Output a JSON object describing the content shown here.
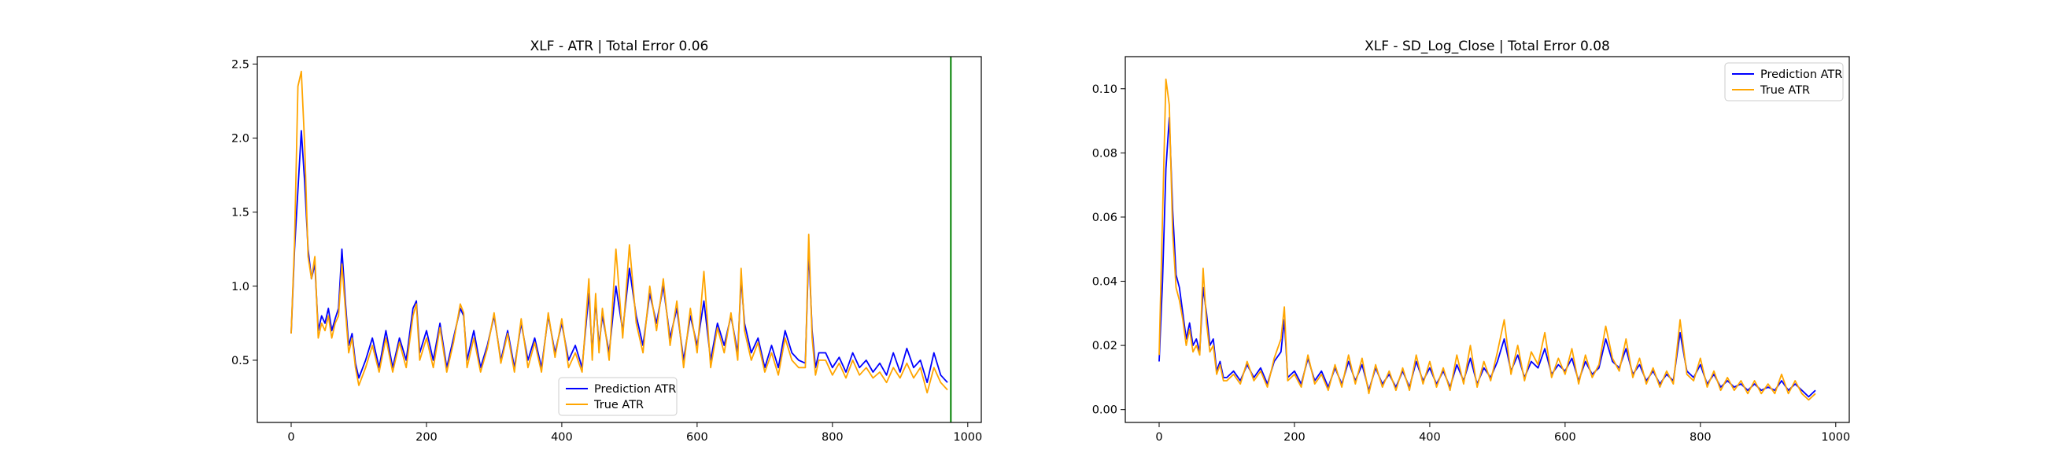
{
  "chart_data": [
    {
      "type": "line",
      "title": "XLF - ATR | Total Error 0.06",
      "xlabel": "",
      "ylabel": "",
      "xlim": [
        -50,
        1020
      ],
      "ylim": [
        0.08,
        2.55
      ],
      "xticks": [
        0,
        200,
        400,
        600,
        800,
        1000
      ],
      "yticks": [
        0.5,
        1.0,
        1.5,
        2.0,
        2.5
      ],
      "x_tick_labels": [
        "0",
        "200",
        "400",
        "600",
        "800",
        "1000"
      ],
      "y_tick_labels": [
        "0.5",
        "1.0",
        "1.5",
        "2.0",
        "2.5"
      ],
      "vline": {
        "x": 975,
        "color": "#008000"
      },
      "grid": false,
      "legend": {
        "position": "lower-center",
        "entries": [
          "Prediction ATR",
          "True ATR"
        ]
      },
      "series": [
        {
          "name": "Prediction ATR",
          "color": "#0000ff",
          "x": [
            0,
            5,
            10,
            15,
            20,
            25,
            30,
            35,
            40,
            45,
            50,
            55,
            60,
            65,
            70,
            75,
            80,
            85,
            90,
            95,
            100,
            110,
            120,
            130,
            140,
            150,
            160,
            170,
            180,
            185,
            190,
            200,
            210,
            220,
            230,
            240,
            250,
            255,
            260,
            270,
            280,
            290,
            300,
            310,
            320,
            330,
            340,
            350,
            360,
            370,
            380,
            390,
            400,
            410,
            420,
            430,
            440,
            445,
            450,
            455,
            460,
            470,
            480,
            490,
            500,
            510,
            520,
            530,
            540,
            550,
            560,
            570,
            580,
            590,
            600,
            610,
            620,
            630,
            640,
            650,
            660,
            665,
            670,
            680,
            690,
            700,
            710,
            720,
            730,
            740,
            750,
            760,
            765,
            770,
            775,
            780,
            790,
            800,
            810,
            820,
            830,
            840,
            850,
            860,
            870,
            880,
            890,
            900,
            910,
            920,
            930,
            940,
            950,
            960,
            970
          ],
          "y": [
            0.68,
            1.25,
            1.65,
            2.05,
            1.7,
            1.25,
            1.05,
            1.15,
            0.7,
            0.8,
            0.75,
            0.85,
            0.7,
            0.78,
            0.85,
            1.25,
            0.9,
            0.6,
            0.68,
            0.48,
            0.38,
            0.5,
            0.65,
            0.45,
            0.7,
            0.45,
            0.65,
            0.5,
            0.85,
            0.9,
            0.55,
            0.7,
            0.5,
            0.75,
            0.45,
            0.65,
            0.85,
            0.8,
            0.5,
            0.7,
            0.45,
            0.6,
            0.8,
            0.5,
            0.7,
            0.45,
            0.75,
            0.5,
            0.65,
            0.45,
            0.8,
            0.55,
            0.75,
            0.5,
            0.6,
            0.45,
            0.95,
            0.55,
            0.9,
            0.6,
            0.8,
            0.55,
            1.0,
            0.7,
            1.12,
            0.8,
            0.6,
            0.95,
            0.75,
            1.0,
            0.65,
            0.85,
            0.5,
            0.8,
            0.6,
            0.9,
            0.5,
            0.75,
            0.6,
            0.8,
            0.55,
            1.05,
            0.75,
            0.55,
            0.65,
            0.45,
            0.6,
            0.45,
            0.7,
            0.55,
            0.5,
            0.48,
            1.25,
            0.7,
            0.45,
            0.55,
            0.55,
            0.45,
            0.52,
            0.42,
            0.55,
            0.45,
            0.5,
            0.42,
            0.48,
            0.4,
            0.55,
            0.42,
            0.58,
            0.45,
            0.5,
            0.35,
            0.55,
            0.4,
            0.35
          ]
        },
        {
          "name": "True ATR",
          "color": "#ffa500",
          "x": [
            0,
            5,
            10,
            15,
            20,
            25,
            30,
            35,
            40,
            45,
            50,
            55,
            60,
            65,
            70,
            75,
            80,
            85,
            90,
            95,
            100,
            110,
            120,
            130,
            140,
            150,
            160,
            170,
            180,
            185,
            190,
            200,
            210,
            220,
            230,
            240,
            250,
            255,
            260,
            270,
            280,
            290,
            300,
            310,
            320,
            330,
            340,
            350,
            360,
            370,
            380,
            390,
            400,
            410,
            420,
            430,
            440,
            445,
            450,
            455,
            460,
            470,
            480,
            490,
            500,
            510,
            520,
            530,
            540,
            550,
            560,
            570,
            580,
            590,
            600,
            610,
            620,
            630,
            640,
            650,
            660,
            665,
            670,
            680,
            690,
            700,
            710,
            720,
            730,
            740,
            750,
            760,
            765,
            770,
            775,
            780,
            790,
            800,
            810,
            820,
            830,
            840,
            850,
            860,
            870,
            880,
            890,
            900,
            910,
            920,
            930,
            940,
            950,
            960,
            970
          ],
          "y": [
            0.68,
            1.3,
            2.35,
            2.45,
            1.95,
            1.2,
            1.05,
            1.2,
            0.65,
            0.75,
            0.7,
            0.8,
            0.65,
            0.75,
            0.8,
            1.15,
            0.85,
            0.55,
            0.65,
            0.45,
            0.33,
            0.45,
            0.6,
            0.42,
            0.65,
            0.42,
            0.62,
            0.45,
            0.8,
            0.88,
            0.5,
            0.65,
            0.45,
            0.72,
            0.42,
            0.62,
            0.88,
            0.82,
            0.45,
            0.65,
            0.42,
            0.58,
            0.82,
            0.48,
            0.68,
            0.42,
            0.78,
            0.45,
            0.62,
            0.42,
            0.82,
            0.52,
            0.78,
            0.45,
            0.55,
            0.42,
            1.05,
            0.5,
            0.95,
            0.55,
            0.85,
            0.5,
            1.25,
            0.65,
            1.28,
            0.75,
            0.55,
            1.0,
            0.7,
            1.05,
            0.6,
            0.9,
            0.45,
            0.85,
            0.55,
            1.1,
            0.45,
            0.72,
            0.55,
            0.82,
            0.5,
            1.12,
            0.7,
            0.5,
            0.62,
            0.42,
            0.55,
            0.4,
            0.65,
            0.5,
            0.45,
            0.45,
            1.35,
            0.65,
            0.4,
            0.5,
            0.5,
            0.4,
            0.48,
            0.38,
            0.5,
            0.4,
            0.45,
            0.38,
            0.42,
            0.35,
            0.45,
            0.38,
            0.48,
            0.38,
            0.45,
            0.28,
            0.45,
            0.35,
            0.3
          ]
        }
      ]
    },
    {
      "type": "line",
      "title": "XLF - SD_Log_Close | Total Error 0.08",
      "xlabel": "",
      "ylabel": "",
      "xlim": [
        -50,
        1020
      ],
      "ylim": [
        -0.004,
        0.11
      ],
      "xticks": [
        0,
        200,
        400,
        600,
        800,
        1000
      ],
      "yticks": [
        0.0,
        0.02,
        0.04,
        0.06,
        0.08,
        0.1
      ],
      "x_tick_labels": [
        "0",
        "200",
        "400",
        "600",
        "800",
        "1000"
      ],
      "y_tick_labels": [
        "0.00",
        "0.02",
        "0.04",
        "0.06",
        "0.08",
        "0.10"
      ],
      "grid": false,
      "legend": {
        "position": "top-right",
        "entries": [
          "Prediction ATR",
          "True ATR"
        ]
      },
      "series": [
        {
          "name": "Prediction ATR",
          "color": "#0000ff",
          "x": [
            0,
            5,
            10,
            15,
            20,
            25,
            30,
            35,
            40,
            45,
            50,
            55,
            60,
            65,
            70,
            75,
            80,
            85,
            90,
            95,
            100,
            110,
            120,
            130,
            140,
            150,
            160,
            170,
            180,
            185,
            190,
            200,
            210,
            220,
            230,
            240,
            250,
            260,
            270,
            280,
            290,
            300,
            310,
            320,
            330,
            340,
            350,
            360,
            370,
            380,
            390,
            400,
            410,
            420,
            430,
            440,
            450,
            460,
            470,
            480,
            490,
            500,
            510,
            520,
            530,
            540,
            550,
            560,
            570,
            580,
            590,
            600,
            610,
            620,
            630,
            640,
            650,
            660,
            670,
            680,
            690,
            700,
            710,
            720,
            730,
            740,
            750,
            760,
            770,
            780,
            790,
            800,
            810,
            820,
            830,
            840,
            850,
            860,
            870,
            880,
            890,
            900,
            910,
            920,
            930,
            940,
            950,
            960,
            970
          ],
          "y": [
            0.015,
            0.04,
            0.075,
            0.091,
            0.062,
            0.042,
            0.038,
            0.03,
            0.022,
            0.027,
            0.02,
            0.022,
            0.018,
            0.038,
            0.03,
            0.02,
            0.022,
            0.012,
            0.015,
            0.01,
            0.01,
            0.012,
            0.009,
            0.014,
            0.01,
            0.013,
            0.008,
            0.015,
            0.018,
            0.028,
            0.01,
            0.012,
            0.008,
            0.016,
            0.009,
            0.012,
            0.007,
            0.013,
            0.008,
            0.015,
            0.009,
            0.014,
            0.006,
            0.013,
            0.008,
            0.011,
            0.007,
            0.012,
            0.007,
            0.015,
            0.009,
            0.013,
            0.008,
            0.012,
            0.007,
            0.014,
            0.009,
            0.016,
            0.008,
            0.013,
            0.01,
            0.015,
            0.022,
            0.012,
            0.017,
            0.01,
            0.015,
            0.013,
            0.019,
            0.011,
            0.014,
            0.012,
            0.016,
            0.009,
            0.015,
            0.011,
            0.013,
            0.022,
            0.015,
            0.013,
            0.019,
            0.011,
            0.014,
            0.009,
            0.012,
            0.008,
            0.011,
            0.009,
            0.024,
            0.012,
            0.01,
            0.014,
            0.008,
            0.011,
            0.007,
            0.009,
            0.007,
            0.008,
            0.006,
            0.008,
            0.006,
            0.007,
            0.006,
            0.009,
            0.006,
            0.008,
            0.006,
            0.004,
            0.006
          ]
        },
        {
          "name": "True ATR",
          "color": "#ffa500",
          "x": [
            0,
            5,
            10,
            15,
            20,
            25,
            30,
            35,
            40,
            45,
            50,
            55,
            60,
            65,
            70,
            75,
            80,
            85,
            90,
            95,
            100,
            110,
            120,
            130,
            140,
            150,
            160,
            170,
            180,
            185,
            190,
            200,
            210,
            220,
            230,
            240,
            250,
            260,
            270,
            280,
            290,
            300,
            310,
            320,
            330,
            340,
            350,
            360,
            370,
            380,
            390,
            400,
            410,
            420,
            430,
            440,
            450,
            460,
            470,
            480,
            490,
            500,
            510,
            520,
            530,
            540,
            550,
            560,
            570,
            580,
            590,
            600,
            610,
            620,
            630,
            640,
            650,
            660,
            670,
            680,
            690,
            700,
            710,
            720,
            730,
            740,
            750,
            760,
            770,
            780,
            790,
            800,
            810,
            820,
            830,
            840,
            850,
            860,
            870,
            880,
            890,
            900,
            910,
            920,
            930,
            940,
            950,
            960,
            970
          ],
          "y": [
            0.017,
            0.06,
            0.103,
            0.095,
            0.055,
            0.038,
            0.034,
            0.028,
            0.02,
            0.025,
            0.018,
            0.02,
            0.017,
            0.044,
            0.027,
            0.018,
            0.02,
            0.011,
            0.014,
            0.009,
            0.009,
            0.011,
            0.008,
            0.015,
            0.009,
            0.012,
            0.007,
            0.016,
            0.022,
            0.032,
            0.009,
            0.011,
            0.007,
            0.017,
            0.008,
            0.011,
            0.006,
            0.014,
            0.007,
            0.017,
            0.008,
            0.016,
            0.005,
            0.014,
            0.007,
            0.012,
            0.006,
            0.013,
            0.006,
            0.017,
            0.008,
            0.015,
            0.007,
            0.013,
            0.006,
            0.017,
            0.008,
            0.02,
            0.007,
            0.015,
            0.009,
            0.018,
            0.028,
            0.011,
            0.02,
            0.009,
            0.018,
            0.014,
            0.024,
            0.01,
            0.016,
            0.011,
            0.019,
            0.008,
            0.017,
            0.01,
            0.014,
            0.026,
            0.016,
            0.012,
            0.022,
            0.01,
            0.016,
            0.008,
            0.013,
            0.007,
            0.012,
            0.008,
            0.028,
            0.011,
            0.009,
            0.016,
            0.007,
            0.012,
            0.006,
            0.01,
            0.006,
            0.009,
            0.005,
            0.009,
            0.005,
            0.008,
            0.005,
            0.011,
            0.005,
            0.009,
            0.005,
            0.003,
            0.005
          ]
        }
      ]
    }
  ]
}
